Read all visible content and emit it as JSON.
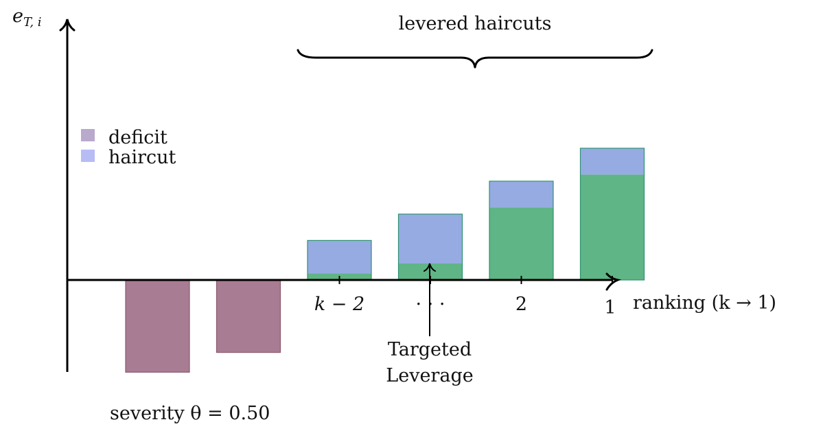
{
  "y_axis": {
    "label_main": "e",
    "label_sub": "T, i"
  },
  "x_axis": {
    "label": "ranking (k → 1)"
  },
  "brace_label": "levered haircuts",
  "legend": [
    {
      "label": "deficit",
      "color": "#b9a9cc"
    },
    {
      "label": "haircut",
      "color": "#b8bcf5"
    }
  ],
  "annotation": {
    "line1": "Targeted",
    "line2": "Leverage"
  },
  "severity_label": "severity θ = 0.50",
  "colors": {
    "deficit_bar": "#a87c93",
    "deficit_stroke": "#8c5a6e",
    "equity": "#5fb585",
    "haircut_bar": "#96abe2",
    "bar_stroke": "#2e9270",
    "axis": "#000000"
  },
  "chart_data": {
    "type": "bar",
    "categories": [
      "",
      "",
      "k − 2",
      "· · ·",
      "2",
      "1"
    ],
    "series": [
      {
        "name": "deficit",
        "values": [
          -1.4,
          -1.1,
          0,
          0,
          0,
          0
        ]
      },
      {
        "values": [
          0,
          0,
          0.1,
          0.25,
          1.1,
          1.6
        ]
      },
      {
        "name": "haircut",
        "values": [
          0,
          0,
          0.5,
          0.75,
          0.4,
          0.4
        ]
      }
    ],
    "ylim": [
      -1.4,
      3.85
    ]
  }
}
